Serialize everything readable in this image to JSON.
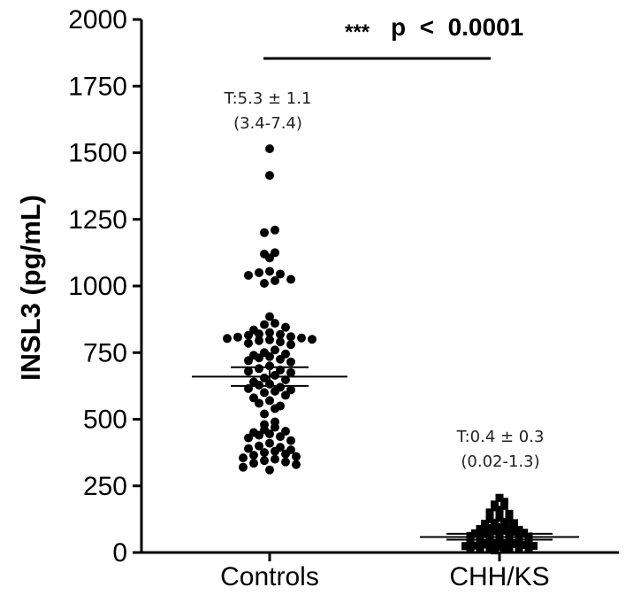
{
  "chart_data": {
    "type": "scatter",
    "title": "",
    "xlabel": "",
    "ylabel": "INSL3 (pg/mL)",
    "ylim": [
      0,
      2000
    ],
    "yticks": [
      0,
      250,
      500,
      750,
      1000,
      1250,
      1500,
      1750,
      2000
    ],
    "categories": [
      "Controls",
      "CHH/KS"
    ],
    "series": [
      {
        "marker": "circle",
        "color": "#000000",
        "mean": 660,
        "sem_low": 625,
        "sem_high": 695,
        "values": [
          1515,
          1415,
          1210,
          1200,
          1125,
          1120,
          1105,
          1055,
          1050,
          1045,
          1040,
          1025,
          1020,
          1010,
          885,
          860,
          855,
          845,
          835,
          825,
          820,
          818,
          815,
          810,
          808,
          805,
          803,
          800,
          798,
          795,
          790,
          785,
          780,
          760,
          750,
          745,
          740,
          735,
          730,
          725,
          720,
          715,
          700,
          690,
          685,
          680,
          675,
          665,
          655,
          648,
          640,
          632,
          628,
          620,
          615,
          610,
          605,
          600,
          590,
          580,
          570,
          560,
          550,
          540,
          520,
          490,
          480,
          470,
          460,
          455,
          450,
          445,
          440,
          435,
          430,
          420,
          410,
          400,
          395,
          390,
          385,
          380,
          375,
          370,
          365,
          360,
          355,
          350,
          345,
          340,
          335,
          330,
          320,
          310
        ]
      },
      {
        "marker": "square",
        "color": "#000000",
        "mean": 58,
        "sem_low": 48,
        "sem_high": 70,
        "values": [
          205,
          190,
          180,
          175,
          170,
          160,
          155,
          150,
          145,
          140,
          130,
          125,
          120,
          115,
          112,
          110,
          108,
          105,
          102,
          100,
          98,
          95,
          92,
          90,
          88,
          85,
          82,
          80,
          78,
          76,
          74,
          72,
          70,
          68,
          66,
          65,
          64,
          62,
          60,
          58,
          56,
          55,
          54,
          52,
          50,
          48,
          46,
          45,
          44,
          42,
          40,
          38,
          36,
          35,
          34,
          32,
          30,
          28,
          26,
          25,
          24,
          22,
          20,
          18,
          16,
          15,
          14,
          12,
          10,
          8
        ]
      }
    ],
    "annotations": [
      {
        "category": "Controls",
        "line1": "T:5.3 ± 1.1",
        "line2": "(3.4-7.4)"
      },
      {
        "category": "CHH/KS",
        "line1": "T:0.4 ± 0.3",
        "line2": "(0.02-1.3)"
      }
    ],
    "significance": {
      "stars": "***",
      "text": "p  <  0.0001"
    }
  }
}
